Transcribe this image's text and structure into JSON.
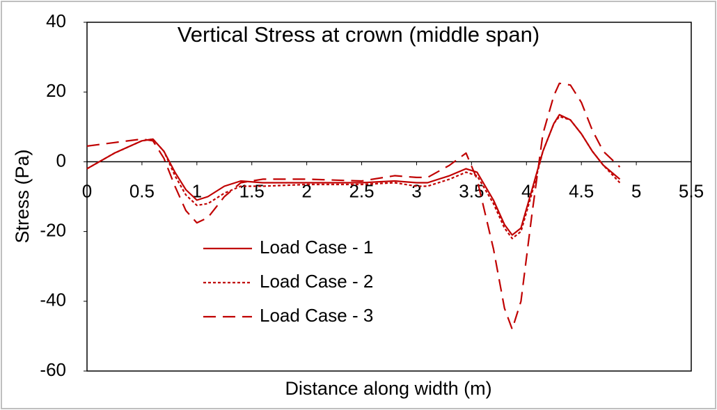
{
  "chart_data": {
    "type": "line",
    "title": "Vertical Stress at crown (middle span)",
    "x_label": "Distance along width (m)",
    "y_label": "Stress (Pa)",
    "x": [
      0,
      0.25,
      0.5,
      0.6,
      0.7,
      0.8,
      0.9,
      1.0,
      1.1,
      1.25,
      1.4,
      1.6,
      2.0,
      2.5,
      2.8,
      3.0,
      3.1,
      3.3,
      3.45,
      3.55,
      3.7,
      3.8,
      3.87,
      3.95,
      4.05,
      4.15,
      4.25,
      4.3,
      4.4,
      4.5,
      4.6,
      4.7,
      4.85
    ],
    "series": [
      {
        "name": "Load Case - 1",
        "color": "#c00000",
        "style": "solid",
        "values": [
          -2,
          2.5,
          6,
          6.5,
          3,
          -3,
          -8,
          -11,
          -10,
          -7,
          -5.5,
          -6,
          -6,
          -6,
          -5.5,
          -6,
          -6,
          -4,
          -2,
          -3,
          -11,
          -18,
          -21,
          -19,
          -8,
          3,
          11,
          13.5,
          12,
          8,
          3,
          -1,
          -5
        ]
      },
      {
        "name": "Load Case - 2",
        "color": "#c00000",
        "style": "dotted",
        "values": [
          -2,
          2.5,
          6,
          6.5,
          3,
          -4,
          -9.5,
          -12.5,
          -12,
          -9,
          -7,
          -7,
          -6.5,
          -6.5,
          -6,
          -7,
          -7,
          -5,
          -3,
          -4,
          -12,
          -19,
          -22,
          -20,
          -9,
          3,
          11,
          13,
          12,
          8,
          3,
          -1,
          -6
        ]
      },
      {
        "name": "Load Case - 3",
        "color": "#c00000",
        "style": "dashed",
        "values": [
          4.5,
          5.5,
          6.5,
          6,
          1,
          -7,
          -14,
          -17.5,
          -16,
          -10,
          -6,
          -5,
          -5,
          -5.5,
          -4,
          -4.5,
          -4.5,
          -1,
          2.5,
          -5,
          -25,
          -42,
          -48,
          -40,
          -15,
          8,
          19,
          22.5,
          22,
          17,
          9,
          3,
          -1.5
        ]
      }
    ],
    "xlim": [
      0,
      5.5
    ],
    "xticks": [
      0,
      0.5,
      1,
      1.5,
      2,
      2.5,
      3,
      3.5,
      4,
      4.5,
      5,
      5.5
    ],
    "ylim": [
      -60,
      40
    ],
    "yticks": [
      -60,
      -40,
      -20,
      0,
      20,
      40
    ],
    "grid": false
  }
}
